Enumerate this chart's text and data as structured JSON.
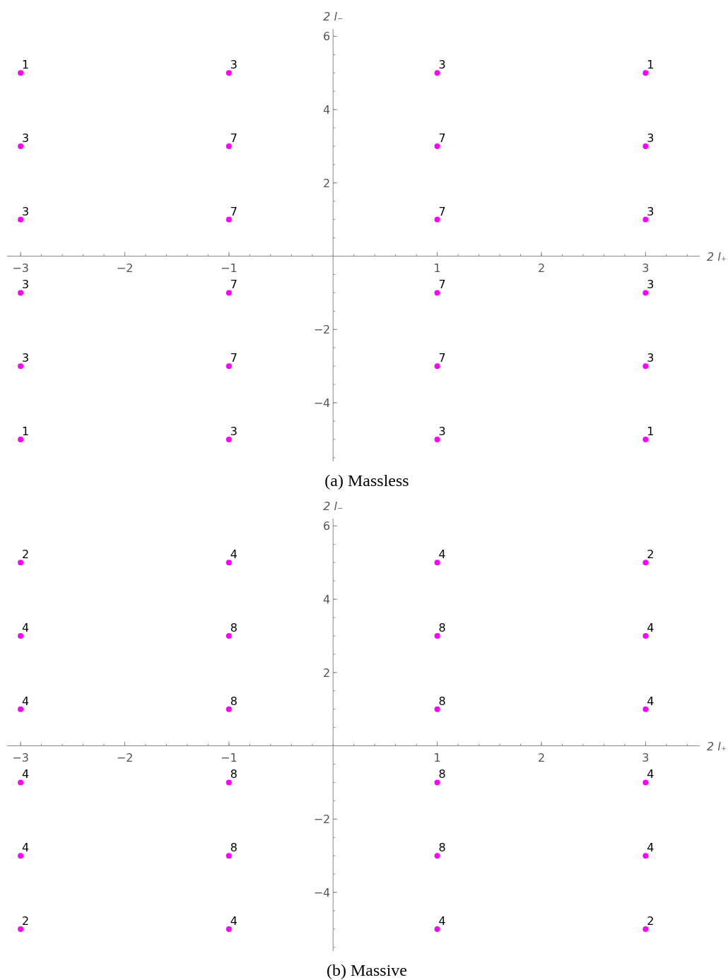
{
  "chart_data": [
    {
      "type": "scatter",
      "title": "(a) Massless",
      "xlabel": "2 l₊",
      "ylabel": "2 l₋",
      "xlim": [
        -3.13,
        3.52
      ],
      "ylim": [
        -5.6,
        6.2
      ],
      "xticks": [
        -3,
        -2,
        -1,
        1,
        2,
        3
      ],
      "yticks": [
        -4,
        -2,
        2,
        4,
        6
      ],
      "grid": false,
      "marker": "circle",
      "series": [
        {
          "color": "#ff00ff",
          "x": [
            -3,
            -1,
            1,
            3,
            -3,
            -1,
            1,
            3,
            -3,
            -1,
            1,
            3,
            -3,
            -1,
            1,
            3,
            -3,
            -1,
            1,
            3,
            -3,
            -1,
            1,
            3
          ],
          "values": [
            5,
            5,
            5,
            5,
            3,
            3,
            3,
            3,
            1,
            1,
            1,
            1,
            -1,
            -1,
            -1,
            -1,
            -3,
            -3,
            -3,
            -3,
            -5,
            -5,
            -5,
            -5
          ]
        }
      ],
      "annotations": [
        {
          "text": "1",
          "x": -3,
          "y": 5
        },
        {
          "text": "3",
          "x": -1,
          "y": 5
        },
        {
          "text": "3",
          "x": 1,
          "y": 5
        },
        {
          "text": "1",
          "x": 3,
          "y": 5
        },
        {
          "text": "3",
          "x": -3,
          "y": 3
        },
        {
          "text": "7",
          "x": -1,
          "y": 3
        },
        {
          "text": "7",
          "x": 1,
          "y": 3
        },
        {
          "text": "3",
          "x": 3,
          "y": 3
        },
        {
          "text": "3",
          "x": -3,
          "y": 1
        },
        {
          "text": "7",
          "x": -1,
          "y": 1
        },
        {
          "text": "7",
          "x": 1,
          "y": 1
        },
        {
          "text": "3",
          "x": 3,
          "y": 1
        },
        {
          "text": "3",
          "x": -3,
          "y": -1
        },
        {
          "text": "7",
          "x": -1,
          "y": -1
        },
        {
          "text": "7",
          "x": 1,
          "y": -1
        },
        {
          "text": "3",
          "x": 3,
          "y": -1
        },
        {
          "text": "3",
          "x": -3,
          "y": -3
        },
        {
          "text": "7",
          "x": -1,
          "y": -3
        },
        {
          "text": "7",
          "x": 1,
          "y": -3
        },
        {
          "text": "3",
          "x": 3,
          "y": -3
        },
        {
          "text": "1",
          "x": -3,
          "y": -5
        },
        {
          "text": "3",
          "x": -1,
          "y": -5
        },
        {
          "text": "3",
          "x": 1,
          "y": -5
        },
        {
          "text": "1",
          "x": 3,
          "y": -5
        }
      ]
    },
    {
      "type": "scatter",
      "title": "(b) Massive",
      "xlabel": "2 l₊",
      "ylabel": "2 l₋",
      "xlim": [
        -3.13,
        3.52
      ],
      "ylim": [
        -5.6,
        6.2
      ],
      "xticks": [
        -3,
        -2,
        -1,
        1,
        2,
        3
      ],
      "yticks": [
        -4,
        -2,
        2,
        4,
        6
      ],
      "grid": false,
      "marker": "circle",
      "series": [
        {
          "color": "#ff00ff",
          "x": [
            -3,
            -1,
            1,
            3,
            -3,
            -1,
            1,
            3,
            -3,
            -1,
            1,
            3,
            -3,
            -1,
            1,
            3,
            -3,
            -1,
            1,
            3,
            -3,
            -1,
            1,
            3
          ],
          "values": [
            5,
            5,
            5,
            5,
            3,
            3,
            3,
            3,
            1,
            1,
            1,
            1,
            -1,
            -1,
            -1,
            -1,
            -3,
            -3,
            -3,
            -3,
            -5,
            -5,
            -5,
            -5
          ]
        }
      ],
      "annotations": [
        {
          "text": "2",
          "x": -3,
          "y": 5
        },
        {
          "text": "4",
          "x": -1,
          "y": 5
        },
        {
          "text": "4",
          "x": 1,
          "y": 5
        },
        {
          "text": "2",
          "x": 3,
          "y": 5
        },
        {
          "text": "4",
          "x": -3,
          "y": 3
        },
        {
          "text": "8",
          "x": -1,
          "y": 3
        },
        {
          "text": "8",
          "x": 1,
          "y": 3
        },
        {
          "text": "4",
          "x": 3,
          "y": 3
        },
        {
          "text": "4",
          "x": -3,
          "y": 1
        },
        {
          "text": "8",
          "x": -1,
          "y": 1
        },
        {
          "text": "8",
          "x": 1,
          "y": 1
        },
        {
          "text": "4",
          "x": 3,
          "y": 1
        },
        {
          "text": "4",
          "x": -3,
          "y": -1
        },
        {
          "text": "8",
          "x": -1,
          "y": -1
        },
        {
          "text": "8",
          "x": 1,
          "y": -1
        },
        {
          "text": "4",
          "x": 3,
          "y": -1
        },
        {
          "text": "4",
          "x": -3,
          "y": -3
        },
        {
          "text": "8",
          "x": -1,
          "y": -3
        },
        {
          "text": "8",
          "x": 1,
          "y": -3
        },
        {
          "text": "4",
          "x": 3,
          "y": -3
        },
        {
          "text": "2",
          "x": -3,
          "y": -5
        },
        {
          "text": "4",
          "x": -1,
          "y": -5
        },
        {
          "text": "4",
          "x": 1,
          "y": -5
        },
        {
          "text": "2",
          "x": 3,
          "y": -5
        }
      ]
    }
  ]
}
